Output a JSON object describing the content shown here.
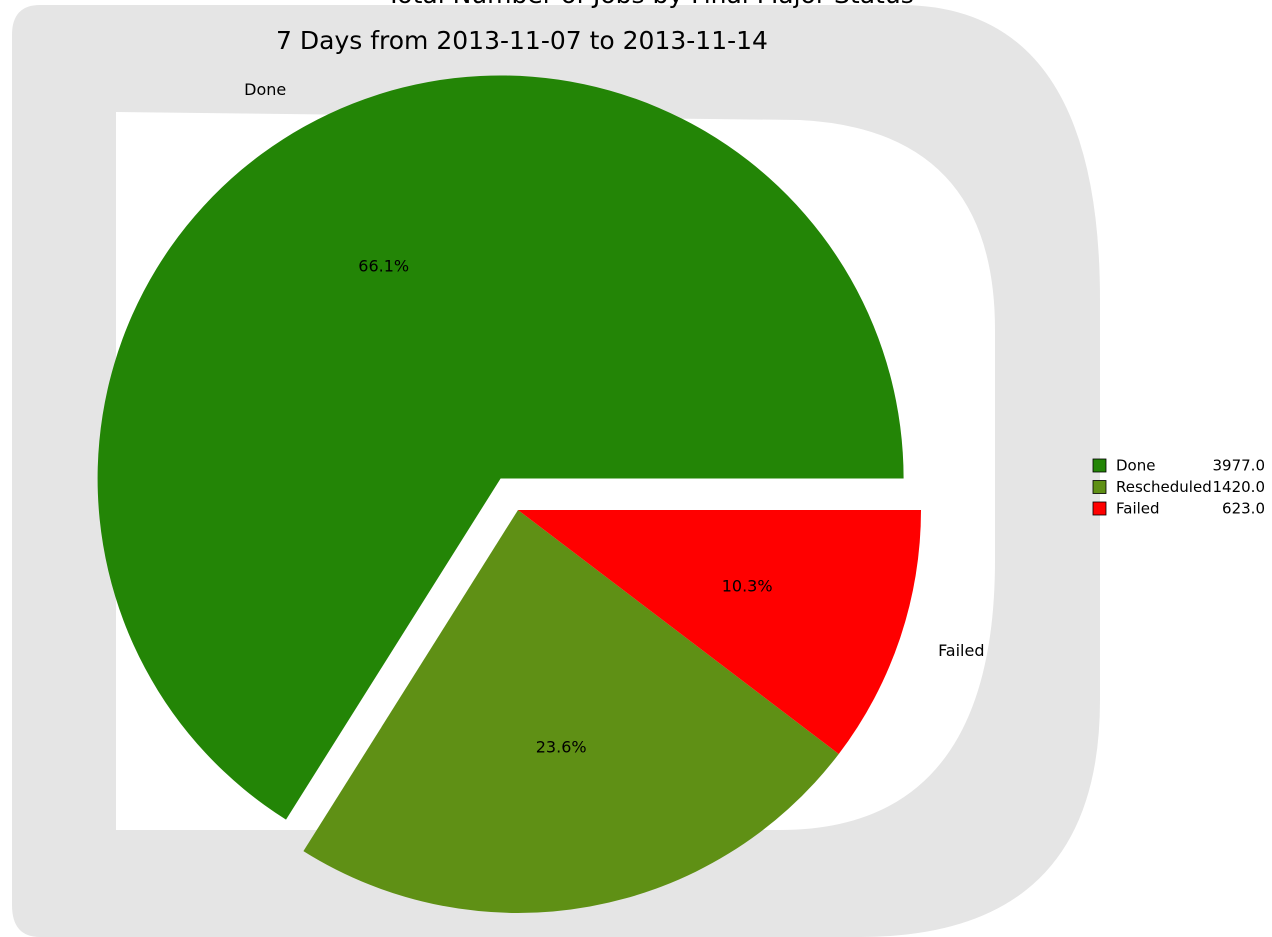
{
  "chart_data": {
    "type": "pie",
    "title": "Total Number of Jobs by Final Major Status",
    "subtitle": "7 Days from 2013-11-07 to 2013-11-14",
    "categories": [
      "Done",
      "Rescheduled",
      "Failed"
    ],
    "values": [
      3977,
      1420,
      623
    ],
    "value_labels": [
      "3977.0",
      "1420.0",
      "623.0"
    ],
    "percent_labels": [
      "66.1%",
      "23.6%",
      "10.3%"
    ],
    "colors": [
      "#238506",
      "#5f9015",
      "#ff0000"
    ],
    "legend": "right"
  }
}
